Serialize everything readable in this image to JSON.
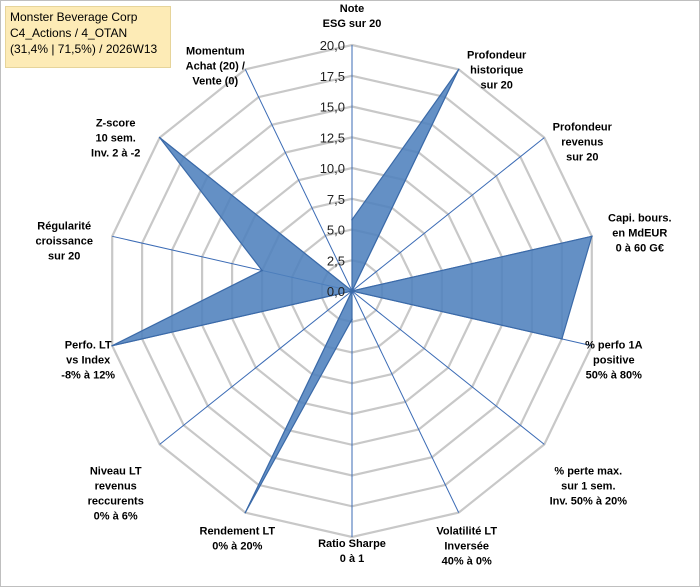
{
  "header": {
    "line1": "Monster Beverage Corp",
    "line2": "C4_Actions / 4_OTAN",
    "line3": "(31,4% | 71,5%) / 2026W13"
  },
  "chart_data": {
    "type": "radar",
    "title": "Monster Beverage Corp",
    "rlim": [
      0,
      20
    ],
    "tick_values": [
      0,
      2.5,
      5,
      7.5,
      10,
      12.5,
      15,
      17.5,
      20
    ],
    "tick_labels": [
      "0,0",
      "2,5",
      "5,0",
      "7,5",
      "10,0",
      "12,5",
      "15,0",
      "17,5",
      "20,0"
    ],
    "grid": true,
    "categories": [
      [
        "Note",
        "ESG sur 20"
      ],
      [
        "Profondeur",
        "historique",
        "sur 20"
      ],
      [
        "Profondeur",
        "revenus",
        "sur 20"
      ],
      [
        "Capi. bours.",
        "en MdEUR",
        "0 à 60 G€"
      ],
      [
        "% perfo 1A",
        "positive",
        "50% à 80%"
      ],
      [
        "% perte max.",
        "sur 1 sem.",
        "Inv. 50% à 20%"
      ],
      [
        "Volatilité LT",
        "Inversée",
        "40% à 0%"
      ],
      [
        "Ratio Sharpe",
        "0 à 1"
      ],
      [
        "Rendement LT",
        "0% à 20%"
      ],
      [
        "Niveau LT",
        "revenus",
        "reccurents",
        "0% à 6%"
      ],
      [
        "Perfo. LT",
        "vs Index",
        "-8% à 12%"
      ],
      [
        "Régularité",
        "croissance",
        "sur 20"
      ],
      [
        "Z-score",
        "10 sem.",
        "Inv. 2 à -2"
      ],
      [
        "Momentum",
        "Achat (20) /",
        "Vente (0)"
      ]
    ],
    "series": [
      {
        "values": [
          5.8,
          20,
          0,
          20,
          17.5,
          0,
          0,
          2.3,
          20,
          0,
          20,
          7.5,
          20,
          0
        ],
        "color": "#4f81bd"
      }
    ],
    "colors": {
      "fill": "#4f81bd",
      "stroke": "#3b6aa8",
      "axis": "#3b6bb5",
      "grid": "#c8c8c8"
    }
  }
}
